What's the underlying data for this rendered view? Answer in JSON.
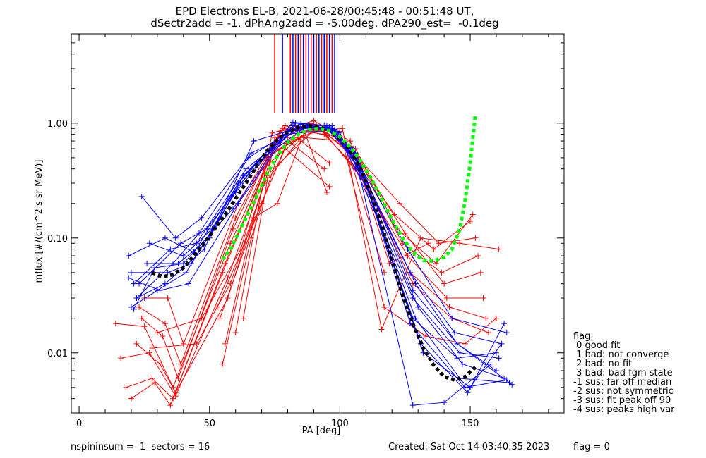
{
  "title_line1": "EPD Electrons EL-B, 2021-06-28/00:45:48 - 00:51:48 UT,",
  "title_line2": "dSectr2add = -1, dPhAng2add = -5.00deg, dPA290_est=  -0.1deg",
  "footer": {
    "left": "nspininsum =  1  sectors = 16",
    "created": "Created: Sat Oct 14 03:40:35 2023",
    "flag": "flag = 0"
  },
  "flag_legend": {
    "title": "flag",
    "items": [
      " 0 good fit",
      " 1 bad: not converge",
      " 2 bad: no fit",
      " 3 bad: bad fgm state",
      "-1 sus: far off median",
      "-2 sus: not symmetric",
      "-3 sus: fit peak off 90",
      "-4 sus: peaks high var"
    ]
  },
  "colors": {
    "red": "#ff0000",
    "blue": "#0000ff",
    "black": "#000000",
    "green": "#00ff00"
  },
  "chart_data": {
    "type": "line",
    "title": "EPD Electrons EL-B, 2021-06-28/00:45:48 - 00:51:48 UT,",
    "xlabel": "PA [deg]",
    "ylabel": "mflux [#/(cm^2 s sr MeV)]",
    "xlim": [
      -3,
      186
    ],
    "ylim": [
      0.003,
      6
    ],
    "yscale": "log",
    "xticks": [
      0,
      50,
      100,
      150
    ],
    "xtick_labels": [
      "0",
      "50",
      "100",
      "150"
    ],
    "yticks": [
      0.01,
      0.1,
      1.0
    ],
    "ytick_labels": [
      "0.01",
      "0.10",
      "1.00"
    ],
    "vertical_line_x": [
      75,
      78,
      81,
      82,
      83,
      84,
      85,
      86,
      87,
      88,
      89,
      90,
      91,
      92,
      93,
      94,
      95,
      96,
      97,
      98
    ],
    "series": [
      {
        "color": "red",
        "x": [
          14,
          25,
          37,
          57,
          72,
          91,
          106,
          122,
          137,
          151
        ],
        "y": [
          0.018,
          0.017,
          0.0045,
          0.03,
          0.35,
          0.92,
          0.6,
          0.12,
          0.06,
          0.16
        ]
      },
      {
        "color": "red",
        "x": [
          16,
          27,
          37,
          57,
          73,
          90,
          105,
          121,
          136,
          150
        ],
        "y": [
          0.009,
          0.01,
          0.0042,
          0.045,
          0.45,
          0.95,
          0.55,
          0.16,
          0.08,
          0.14
        ]
      },
      {
        "color": "red",
        "x": [
          18,
          28,
          36,
          56,
          74,
          92,
          107,
          123,
          138,
          152
        ],
        "y": [
          0.005,
          0.006,
          0.004,
          0.06,
          0.55,
          0.9,
          0.5,
          0.2,
          0.09,
          0.1
        ]
      },
      {
        "color": "red",
        "x": [
          20,
          29,
          35,
          55,
          75,
          93,
          108,
          124,
          139,
          153
        ],
        "y": [
          0.004,
          0.0055,
          0.0035,
          0.05,
          0.62,
          0.88,
          0.45,
          0.09,
          0.05,
          0.07
        ]
      },
      {
        "color": "red",
        "x": [
          22,
          31,
          36,
          58,
          76,
          89,
          105,
          125,
          140,
          154
        ],
        "y": [
          0.012,
          0.008,
          0.005,
          0.09,
          0.7,
          1.0,
          0.6,
          0.11,
          0.04,
          0.05
        ]
      },
      {
        "color": "red",
        "x": [
          24,
          32,
          38,
          59,
          77,
          91,
          106,
          126,
          141,
          155
        ],
        "y": [
          0.02,
          0.014,
          0.006,
          0.12,
          0.85,
          0.97,
          0.4,
          0.07,
          0.03,
          0.03
        ]
      },
      {
        "color": "red",
        "x": [
          23,
          33,
          39,
          60,
          78,
          94,
          109,
          127,
          142,
          156
        ],
        "y": [
          0.025,
          0.018,
          0.008,
          0.15,
          0.9,
          0.8,
          0.35,
          0.05,
          0.025,
          0.02
        ]
      },
      {
        "color": "red",
        "x": [
          25,
          34,
          40,
          61,
          79,
          95,
          110,
          128,
          143,
          157
        ],
        "y": [
          0.03,
          0.03,
          0.012,
          0.2,
          0.95,
          0.78,
          0.3,
          0.04,
          0.02,
          0.015
        ]
      },
      {
        "color": "red",
        "x": [
          55,
          66,
          77,
          86,
          95
        ],
        "y": [
          0.008,
          0.1,
          0.6,
          0.9,
          0.25
        ]
      },
      {
        "color": "red",
        "x": [
          56,
          67,
          76,
          85,
          96
        ],
        "y": [
          0.012,
          0.15,
          0.2,
          0.7,
          0.45
        ]
      },
      {
        "color": "red",
        "x": [
          28,
          45,
          58,
          71,
          88,
          100,
          117,
          133,
          148,
          160
        ],
        "y": [
          0.011,
          0.012,
          0.04,
          0.3,
          0.9,
          0.85,
          0.025,
          0.014,
          0.012,
          0.02
        ]
      },
      {
        "color": "red",
        "x": [
          30,
          47,
          62,
          72,
          88,
          101,
          116,
          131,
          146,
          161
        ],
        "y": [
          0.015,
          0.02,
          0.08,
          0.5,
          0.85,
          0.9,
          0.016,
          0.1,
          0.09,
          0.08
        ]
      },
      {
        "color": "red",
        "x": [
          63,
          75,
          86,
          102,
          117
        ],
        "y": [
          0.02,
          0.75,
          0.75,
          0.7,
          0.05
        ]
      },
      {
        "color": "red",
        "x": [
          60,
          74,
          90,
          104,
          119,
          134
        ],
        "y": [
          0.015,
          0.82,
          1.05,
          0.7,
          0.06,
          0.09
        ]
      },
      {
        "color": "red",
        "x": [
          53,
          70,
          80,
          94
        ],
        "y": [
          0.025,
          0.2,
          0.7,
          0.4
        ]
      },
      {
        "color": "red",
        "x": [
          54,
          69,
          79,
          96
        ],
        "y": [
          0.02,
          0.18,
          0.6,
          0.28
        ]
      },
      {
        "color": "blue",
        "x": [
          19,
          33,
          44,
          63,
          82,
          96,
          107,
          129,
          145,
          160
        ],
        "y": [
          0.07,
          0.1,
          0.075,
          0.35,
          0.95,
          0.9,
          0.45,
          0.04,
          0.012,
          0.007
        ]
      },
      {
        "color": "blue",
        "x": [
          20,
          34,
          43,
          62,
          83,
          97,
          106,
          128,
          146,
          161
        ],
        "y": [
          0.05,
          0.05,
          0.06,
          0.3,
          1.0,
          0.95,
          0.4,
          0.03,
          0.01,
          0.009
        ]
      },
      {
        "color": "blue",
        "x": [
          21,
          35,
          45,
          64,
          84,
          95,
          105,
          127,
          144,
          162
        ],
        "y": [
          0.04,
          0.08,
          0.09,
          0.4,
          0.92,
          0.92,
          0.5,
          0.05,
          0.015,
          0.012
        ]
      },
      {
        "color": "blue",
        "x": [
          22,
          36,
          46,
          65,
          85,
          98,
          108,
          130,
          147,
          163
        ],
        "y": [
          0.03,
          0.06,
          0.11,
          0.5,
          0.98,
          0.88,
          0.38,
          0.025,
          0.008,
          0.006
        ]
      },
      {
        "color": "blue",
        "x": [
          24,
          37,
          47,
          66,
          86,
          94,
          104,
          126,
          143,
          164
        ],
        "y": [
          0.23,
          0.1,
          0.15,
          0.55,
          0.9,
          0.96,
          0.6,
          0.08,
          0.02,
          0.015
        ]
      },
      {
        "color": "blue",
        "x": [
          19,
          31,
          42,
          61,
          81,
          96,
          106,
          128,
          145,
          166
        ],
        "y": [
          0.045,
          0.035,
          0.04,
          0.2,
          0.88,
          0.93,
          0.55,
          0.035,
          0.012,
          0.0053
        ]
      },
      {
        "color": "blue",
        "x": [
          20,
          30,
          41,
          60,
          80,
          95,
          107,
          129,
          146,
          165
        ],
        "y": [
          0.025,
          0.035,
          0.05,
          0.25,
          0.85,
          0.9,
          0.45,
          0.02,
          0.006,
          0.0055
        ]
      },
      {
        "color": "blue",
        "x": [
          21,
          29,
          40,
          59,
          79,
          97,
          109,
          127,
          148,
          164
        ],
        "y": [
          0.024,
          0.055,
          0.06,
          0.18,
          0.8,
          0.87,
          0.35,
          0.018,
          0.005,
          0.0058
        ]
      },
      {
        "color": "blue",
        "x": [
          22,
          33,
          48,
          67,
          87,
          99,
          110,
          131,
          149,
          163
        ],
        "y": [
          0.03,
          0.04,
          0.08,
          0.7,
          0.95,
          0.85,
          0.3,
          0.012,
          0.0045,
          0.018
        ]
      },
      {
        "color": "blue",
        "x": [
          23,
          39,
          49,
          68,
          88,
          100,
          111,
          132,
          150,
          162
        ],
        "y": [
          0.04,
          0.09,
          0.12,
          0.45,
          0.97,
          0.82,
          0.25,
          0.01,
          0.005,
          0.012
        ]
      },
      {
        "color": "blue",
        "x": [
          26,
          38,
          50,
          63,
          84,
          97,
          106,
          128,
          140,
          158
        ],
        "y": [
          0.06,
          0.06,
          0.1,
          0.35,
          0.93,
          0.9,
          0.5,
          0.0035,
          0.0037,
          0.008
        ]
      },
      {
        "color": "blue",
        "x": [
          27,
          40,
          51,
          61,
          82,
          95,
          105,
          128,
          145,
          160
        ],
        "y": [
          0.09,
          0.07,
          0.12,
          0.3,
          1.02,
          0.95,
          0.6,
          0.02,
          0.009,
          0.01
        ]
      }
    ],
    "fit_curves": [
      {
        "name": "",
        "color": "black",
        "style": "dashed",
        "x": [
          28,
          32,
          36,
          40,
          44,
          48,
          52,
          56,
          60,
          64,
          68,
          72,
          76,
          80,
          84,
          88,
          92,
          96,
          100,
          104,
          108,
          112,
          116,
          120,
          124,
          128,
          132,
          136,
          140,
          144,
          148,
          152
        ],
        "y": [
          0.05,
          0.046,
          0.048,
          0.055,
          0.07,
          0.09,
          0.12,
          0.16,
          0.22,
          0.3,
          0.42,
          0.57,
          0.72,
          0.84,
          0.92,
          0.95,
          0.93,
          0.86,
          0.74,
          0.58,
          0.4,
          0.24,
          0.13,
          0.065,
          0.032,
          0.018,
          0.011,
          0.0078,
          0.0062,
          0.0058,
          0.0062,
          0.0075
        ]
      },
      {
        "name": "",
        "color": "green",
        "style": "dashed",
        "x": [
          55,
          58,
          61,
          64,
          68,
          72,
          76,
          80,
          84,
          88,
          92,
          96,
          100,
          104,
          108,
          112,
          116,
          120,
          124,
          128,
          132,
          136,
          140,
          143,
          146,
          148,
          150,
          152
        ],
        "y": [
          0.065,
          0.08,
          0.11,
          0.15,
          0.23,
          0.36,
          0.52,
          0.68,
          0.8,
          0.88,
          0.9,
          0.86,
          0.76,
          0.62,
          0.47,
          0.33,
          0.22,
          0.145,
          0.1,
          0.075,
          0.064,
          0.063,
          0.068,
          0.08,
          0.12,
          0.21,
          0.45,
          1.2
        ]
      }
    ]
  }
}
